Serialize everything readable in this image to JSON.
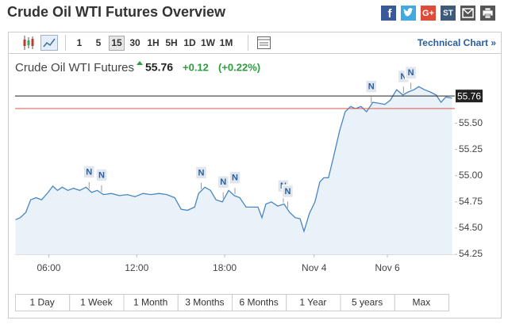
{
  "header": {
    "title": "Crude Oil WTI Futures Overview",
    "share": [
      "G+",
      "ST"
    ]
  },
  "toolbar": {
    "intervals": [
      "1",
      "5",
      "15",
      "30",
      "1H",
      "5H",
      "1D",
      "1W",
      "1M"
    ],
    "selected": "15",
    "technical": "Technical Chart »"
  },
  "quote": {
    "name": "Crude Oil WTI Futures",
    "price": "55.76",
    "change": "+0.12",
    "change_pct": "(+0.22%)"
  },
  "chart_data": {
    "type": "area",
    "color": "#4a86c0",
    "fill": "#e9f1f9",
    "x": [
      3.73,
      4.05,
      4.43,
      4.76,
      5.14,
      5.51,
      5.95,
      6.27,
      6.59,
      6.92,
      7.3,
      7.68,
      8.11,
      8.54,
      8.92,
      9.3,
      9.73,
      10.27,
      10.81,
      11.35,
      11.89,
      12.43,
      12.97,
      13.51,
      14.05,
      14.59,
      15.03,
      15.46,
      15.95,
      16.22,
      16.65,
      17.03,
      17.41,
      17.84,
      18.27,
      18.65,
      19.03,
      19.46,
      19.89,
      20.27,
      20.54,
      20.81,
      21.19,
      21.62,
      22.05,
      22.43,
      22.81,
      23.14,
      23.41,
      23.78,
      24.16,
      24.49,
      24.76,
      25.08,
      25.41,
      25.84,
      26.22,
      26.59,
      26.92,
      27.3,
      27.68,
      28.11,
      28.54,
      28.92,
      29.3,
      29.73,
      30.16,
      30.54,
      30.92,
      31.24,
      31.62,
      32.0,
      32.43,
      32.76,
      33.08,
      33.51
    ],
    "values": [
      54.58,
      54.6,
      54.65,
      54.77,
      54.79,
      54.77,
      54.84,
      54.9,
      54.86,
      54.89,
      54.86,
      54.88,
      54.86,
      54.89,
      54.84,
      54.86,
      54.82,
      54.83,
      54.81,
      54.82,
      54.8,
      54.83,
      54.82,
      54.83,
      54.82,
      54.79,
      54.68,
      54.67,
      54.7,
      54.83,
      54.89,
      54.86,
      54.77,
      54.75,
      54.86,
      54.81,
      54.79,
      54.7,
      54.7,
      54.7,
      54.6,
      54.73,
      54.75,
      54.71,
      54.73,
      54.65,
      54.6,
      54.59,
      54.47,
      54.64,
      54.75,
      54.94,
      54.98,
      54.98,
      55.17,
      55.43,
      55.61,
      55.66,
      55.64,
      55.66,
      55.61,
      55.7,
      55.69,
      55.68,
      55.72,
      55.82,
      55.77,
      55.8,
      55.82,
      55.85,
      55.82,
      55.8,
      55.77,
      55.7,
      55.75,
      55.74
    ],
    "xlim": [
      3.7,
      33.7
    ],
    "ylim": [
      54.25,
      55.92
    ],
    "xticks": [
      {
        "value": 6,
        "label": "06:00"
      },
      {
        "value": 12,
        "label": "12:00"
      },
      {
        "value": 18,
        "label": "18:00"
      },
      {
        "value": 24.1,
        "label": "Nov 4"
      },
      {
        "value": 29.1,
        "label": "Nov 6"
      }
    ],
    "yticks": [
      54.25,
      {
        "value": 54.5,
        "label": "54.50"
      },
      54.75,
      {
        "value": 55,
        "label": "55.00"
      },
      55.25,
      {
        "value": 55.5,
        "label": "55.50"
      }
    ],
    "reference_lines": [
      {
        "value": 55.76,
        "color": "#222222"
      },
      {
        "value": 55.64,
        "color": "#d9534f"
      }
    ],
    "news": [
      {
        "x": 8.75,
        "label": "N"
      },
      {
        "x": 9.6,
        "label": "N"
      },
      {
        "x": 16.4,
        "label": "N"
      },
      {
        "x": 17.9,
        "label": "N"
      },
      {
        "x": 18.7,
        "label": "N"
      },
      {
        "x": 22.0,
        "label": "N"
      },
      {
        "x": 22.3,
        "label": "N"
      },
      {
        "x": 28.0,
        "label": "N"
      },
      {
        "x": 30.2,
        "label": "N"
      },
      {
        "x": 30.7,
        "label": "N"
      }
    ]
  },
  "ranges": [
    "1 Day",
    "1 Week",
    "1 Month",
    "3 Months",
    "6 Months",
    "1 Year",
    "5 years",
    "Max"
  ]
}
